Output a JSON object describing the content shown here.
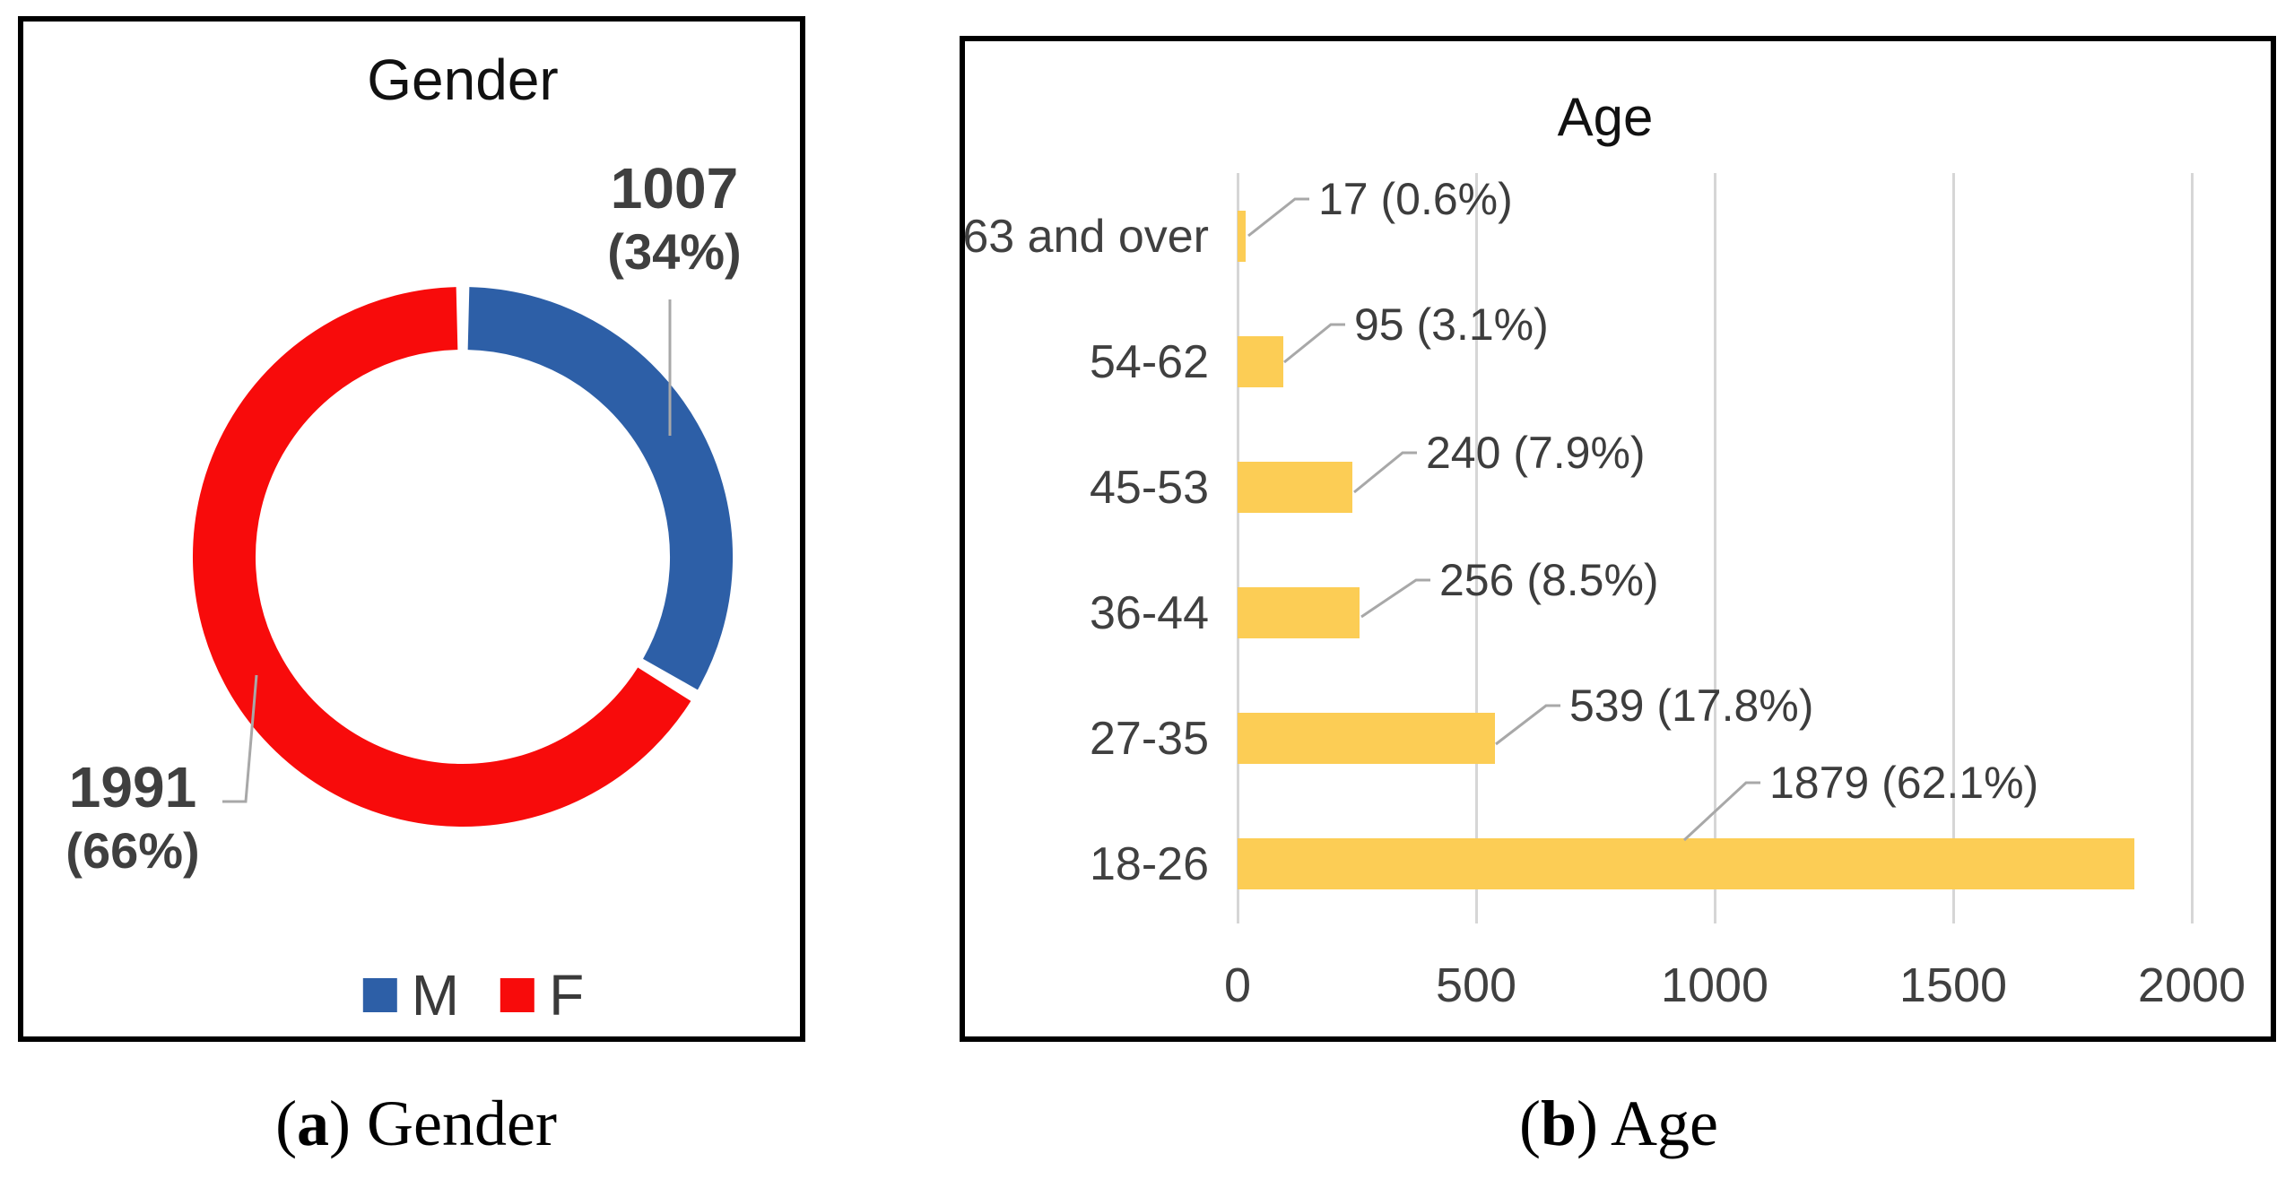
{
  "figure": {
    "caption_a": {
      "open": "(",
      "letter": "a",
      "rest": ") Gender"
    },
    "caption_b": {
      "open": "(",
      "letter": "b",
      "rest": ") Age"
    }
  },
  "colors": {
    "male_blue": "#2d5fa7",
    "female_red": "#f80b0b",
    "bar_yellow": "#fccd55",
    "leader_gray": "#a8a8a8",
    "grid_gray": "#d6d6d6",
    "label_gray": "#3d3d3d"
  },
  "chart_data": [
    {
      "type": "pie",
      "subtype": "donut",
      "title": "Gender",
      "labels": [
        "M",
        "F"
      ],
      "values": [
        1007,
        1991
      ],
      "pcts": [
        "34%",
        "66%"
      ],
      "colors": [
        "#2d5fa7",
        "#f80b0b"
      ],
      "legend_position": "bottom",
      "data_labels": [
        {
          "line1": "1007",
          "line2": "(34%)"
        },
        {
          "line1": "1991",
          "line2": "(66%)"
        }
      ]
    },
    {
      "type": "bar",
      "orientation": "horizontal",
      "title": "Age",
      "categories": [
        "63 and over",
        "54-62",
        "45-53",
        "36-44",
        "27-35",
        "18-26"
      ],
      "values": [
        17,
        95,
        240,
        256,
        539,
        1879
      ],
      "pcts": [
        "0.6%",
        "3.1%",
        "7.9%",
        "8.5%",
        "17.8%",
        "62.1%"
      ],
      "xlim": [
        0,
        2000
      ],
      "xticks": [
        "0",
        "500",
        "1000",
        "1500",
        "2000"
      ],
      "bar_color": "#fccd55",
      "grid": true,
      "legend_position": "none"
    }
  ]
}
